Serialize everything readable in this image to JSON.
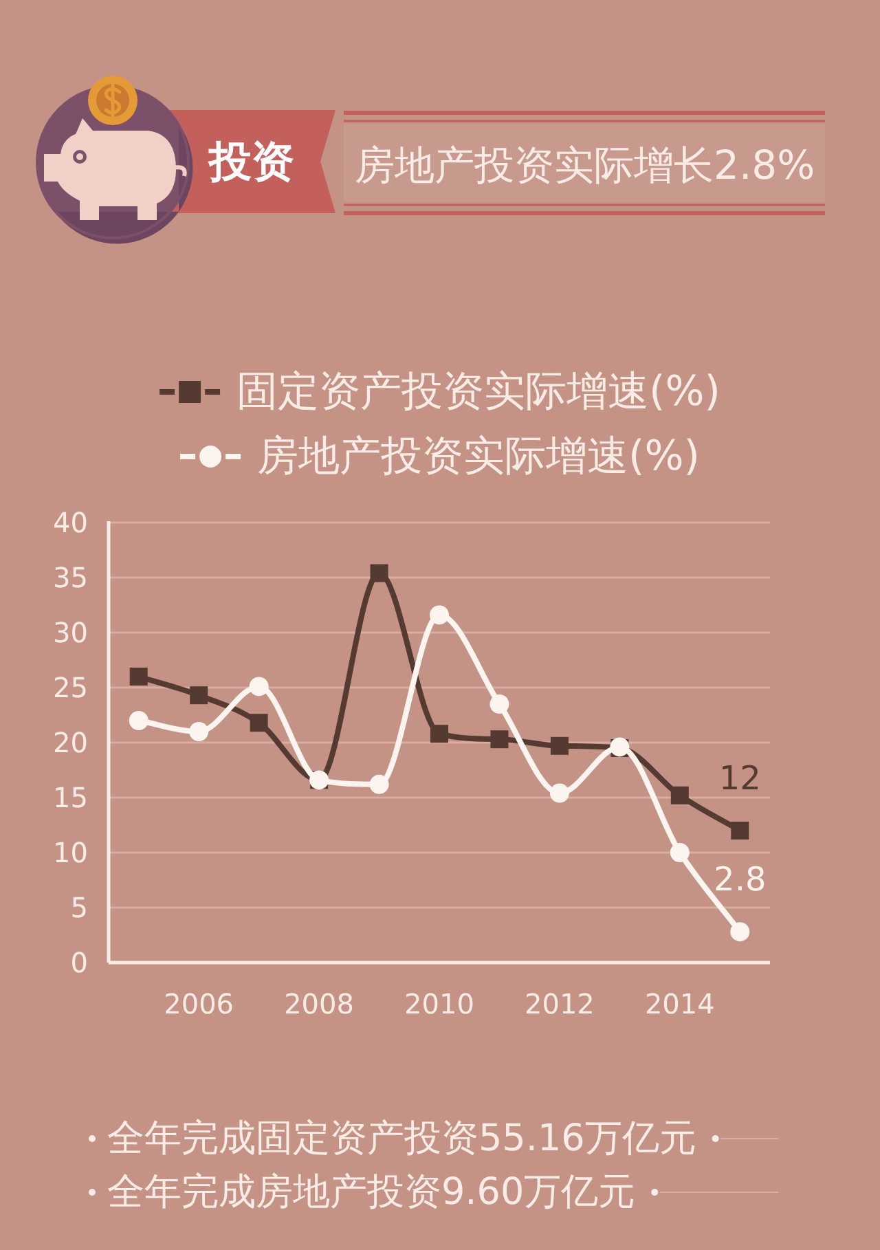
{
  "chart_data": {
    "type": "line",
    "title": "投资",
    "subtitle": "房地产投资实际增长2.8%",
    "x": [
      2005,
      2006,
      2007,
      2008,
      2009,
      2010,
      2011,
      2012,
      2013,
      2014,
      2015
    ],
    "xlim": [
      2004.5,
      2015.5
    ],
    "xticks": [
      2006,
      2008,
      2010,
      2012,
      2014
    ],
    "ylim": [
      0,
      40
    ],
    "yticks": [
      0,
      5,
      10,
      15,
      20,
      25,
      30,
      35,
      40
    ],
    "grid": "y",
    "legend": "top",
    "series": [
      {
        "name": "固定资产投资实际增速(%)",
        "color": "#553a32",
        "marker": "square",
        "values": [
          26,
          24.3,
          21.8,
          16.6,
          35.4,
          20.8,
          20.3,
          19.7,
          19.5,
          15.2,
          12
        ],
        "value_labels": [
          null,
          null,
          null,
          null,
          null,
          null,
          null,
          null,
          null,
          null,
          "12"
        ]
      },
      {
        "name": "房地产投资实际增速(%)",
        "color": "#fcf4ef",
        "marker": "circle",
        "values": [
          22,
          21,
          25.1,
          16.6,
          16.2,
          31.6,
          23.5,
          15.4,
          19.6,
          10,
          2.8
        ],
        "value_labels": [
          null,
          null,
          null,
          null,
          null,
          null,
          null,
          null,
          null,
          null,
          "2.8"
        ]
      }
    ],
    "annotations": [
      "全年完成固定资产投资55.16万亿元",
      "全年完成房地产投资9.60万亿元"
    ]
  }
}
